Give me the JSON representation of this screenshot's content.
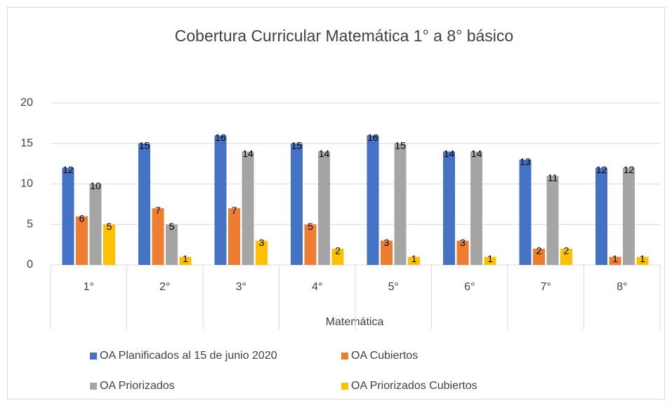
{
  "chart_data": {
    "type": "bar",
    "title": "Cobertura Curricular Matemática 1° a 8° básico",
    "x_label": "Matemática",
    "categories": [
      "1°",
      "2°",
      "3°",
      "4°",
      "5°",
      "6°",
      "7°",
      "8°"
    ],
    "series": [
      {
        "name": "OA Planificados al 15 de junio 2020",
        "color": "#4472c4",
        "values": [
          12,
          15,
          16,
          15,
          16,
          14,
          13,
          12
        ]
      },
      {
        "name": "OA Cubiertos",
        "color": "#ed7d31",
        "values": [
          6,
          7,
          7,
          5,
          3,
          3,
          2,
          1
        ]
      },
      {
        "name": "OA Priorizados",
        "color": "#a5a5a5",
        "values": [
          10,
          5,
          14,
          14,
          15,
          14,
          11,
          12
        ]
      },
      {
        "name": "OA Priorizados Cubiertos",
        "color": "#ffc000",
        "values": [
          5,
          1,
          3,
          2,
          1,
          1,
          2,
          1
        ]
      }
    ],
    "ylim": [
      0,
      20
    ],
    "yticks": [
      0,
      5,
      10,
      15,
      20
    ],
    "grid": true
  }
}
